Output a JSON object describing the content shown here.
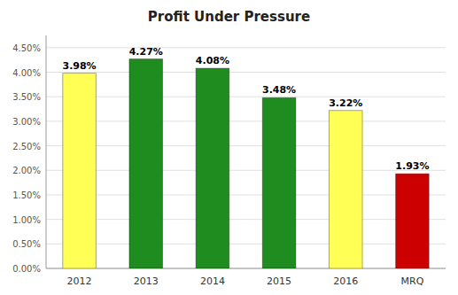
{
  "chart_data": {
    "type": "bar",
    "title": "Profit Under Pressure",
    "categories": [
      "2012",
      "2013",
      "2014",
      "2015",
      "2016",
      "MRQ"
    ],
    "values": [
      3.98,
      4.27,
      4.08,
      3.48,
      3.22,
      1.93
    ],
    "value_labels": [
      "3.98%",
      "4.27%",
      "4.08%",
      "3.48%",
      "3.22%",
      "1.93%"
    ],
    "colors": [
      "#FFFF55",
      "#1e8c1e",
      "#1e8c1e",
      "#1e8c1e",
      "#FFFF55",
      "#cc0000"
    ],
    "ylim": [
      0,
      4.75
    ],
    "yticks": [
      {
        "value": 0.0,
        "label": "0.00%"
      },
      {
        "value": 0.5,
        "label": "0.50%"
      },
      {
        "value": 1.0,
        "label": "1.00%"
      },
      {
        "value": 1.5,
        "label": "1.50%"
      },
      {
        "value": 2.0,
        "label": "2.00%"
      },
      {
        "value": 2.5,
        "label": "2.50%"
      },
      {
        "value": 3.0,
        "label": "3.00%"
      },
      {
        "value": 3.5,
        "label": "3.50%"
      },
      {
        "value": 4.0,
        "label": "4.00%"
      },
      {
        "value": 4.5,
        "label": "4.50%"
      }
    ],
    "grid": true,
    "data_labels": true
  }
}
